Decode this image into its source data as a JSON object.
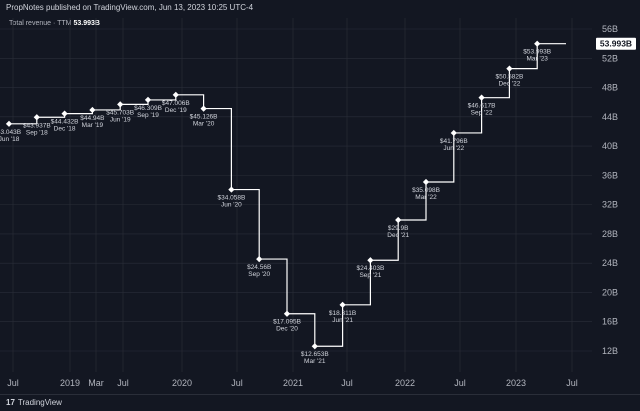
{
  "header": {
    "publisher_text": "PropNotes published on TradingView.com, Jun 13, 2023 10:25 UTC-4"
  },
  "series_label": {
    "name": "Total revenue · TTM",
    "value": "53.993B"
  },
  "footer": {
    "brand_logo": "17",
    "brand_name": "TradingView"
  },
  "chart_data": {
    "type": "line",
    "step": true,
    "x_axis_ticks": [
      "Jul",
      "2019",
      "Mar",
      "Jul",
      "2020",
      "Jul",
      "2021",
      "Jul",
      "2022",
      "Jul",
      "2023",
      "Jul"
    ],
    "y_axis_ticks": [
      "12B",
      "16B",
      "20B",
      "24B",
      "28B",
      "32B",
      "36B",
      "40B",
      "44B",
      "48B",
      "52B",
      "56B"
    ],
    "ylim": [
      11,
      57
    ],
    "last_value_label": "53.993B",
    "colors": {
      "line": "#ffffff",
      "background": "#131722",
      "grid": "#2a2e39",
      "axis_text": "#b2b5be"
    },
    "points": [
      {
        "x": "Jun '18",
        "y": 43.043,
        "label": "43.043B"
      },
      {
        "x": "Sep '18",
        "y": 43.937,
        "label": "$43.937B"
      },
      {
        "x": "Dec '18",
        "y": 44.432,
        "label": "$44.432B"
      },
      {
        "x": "Mar '19",
        "y": 44.94,
        "label": "$44.94B"
      },
      {
        "x": "Jun '19",
        "y": 45.703,
        "label": "$45.703B"
      },
      {
        "x": "Sep '19",
        "y": 46.309,
        "label": "$46.309B"
      },
      {
        "x": "Dec '19",
        "y": 47.006,
        "label": "$47.006B"
      },
      {
        "x": "Mar '20",
        "y": 45.126,
        "label": "$45.126B"
      },
      {
        "x": "Jun '20",
        "y": 34.058,
        "label": "$34.058B"
      },
      {
        "x": "Sep '20",
        "y": 24.56,
        "label": "$24.56B"
      },
      {
        "x": "Dec '20",
        "y": 17.095,
        "label": "$17.095B"
      },
      {
        "x": "Mar '21",
        "y": 12.653,
        "label": "$12.653B"
      },
      {
        "x": "Jun '21",
        "y": 18.311,
        "label": "$18.311B"
      },
      {
        "x": "Sep '21",
        "y": 24.403,
        "label": "$24.403B"
      },
      {
        "x": "Dec '21",
        "y": 29.9,
        "label": "$29.9B"
      },
      {
        "x": "Mar '22",
        "y": 35.098,
        "label": "$35.098B"
      },
      {
        "x": "Jun '22",
        "y": 41.796,
        "label": "$41.796B"
      },
      {
        "x": "Sep '22",
        "y": 46.617,
        "label": "$46.617B"
      },
      {
        "x": "Dec '22",
        "y": 50.582,
        "label": "$50.582B"
      },
      {
        "x": "Mar '23",
        "y": 53.993,
        "label": "$53.993B"
      }
    ]
  }
}
